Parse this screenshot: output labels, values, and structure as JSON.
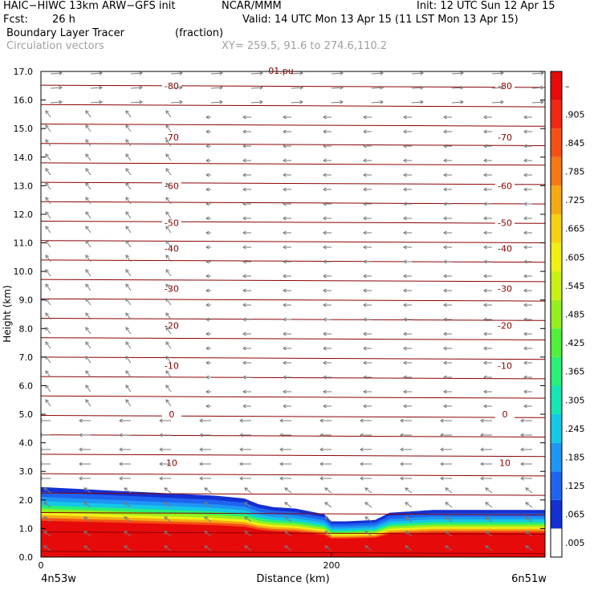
{
  "header": {
    "model": "HAIC−HIWC 13km ARW−GFS init",
    "center": "NCAR/MMM",
    "init": "Init: 12 UTC Sun 12 Apr 15",
    "fcst_label": "Fcst:",
    "fcst_value": "26 h",
    "valid": "Valid: 14 UTC Mon 13 Apr 15 (11 LST Mon 13 Apr 15)",
    "field": "Boundary Layer Tracer",
    "field_units": "(fraction)",
    "vectors": "Circulation vectors",
    "xy": "XY= 259.5, 91.6 to 274.6,110.2"
  },
  "chart_data": {
    "type": "heatmap",
    "title": "Boundary Layer Tracer",
    "units": "(fraction)",
    "xlabel": "Distance (km)",
    "ylabel": "Height (km)",
    "xlim": [
      0,
      347
    ],
    "ylim": [
      0,
      17
    ],
    "x_ticks": [
      {
        "value": 0,
        "label": "0"
      },
      {
        "value": 200,
        "label": "200"
      }
    ],
    "x_end_labels": {
      "left": "4n53w",
      "right": "6n51w"
    },
    "y_ticks": [
      "0.0",
      "1.0",
      "2.0",
      "3.0",
      "4.0",
      "5.0",
      "6.0",
      "7.0",
      "8.0",
      "9.0",
      "10.0",
      "11.0",
      "12.0",
      "13.0",
      "14.0",
      "15.0",
      "16.0",
      "17.0"
    ],
    "colorbar_labels": [
      ".005",
      ".065",
      ".125",
      ".185",
      ".245",
      ".305",
      ".365",
      ".425",
      ".485",
      ".545",
      ".605",
      ".665",
      ".725",
      ".785",
      ".845",
      ".905",
      "–"
    ],
    "colorbar_colors": [
      "#ffffff",
      "#1430d2",
      "#1e64f0",
      "#1e96f5",
      "#14c8e6",
      "#14e6b4",
      "#28f078",
      "#50f03c",
      "#96f01e",
      "#c8f014",
      "#f0f014",
      "#f5d214",
      "#f5aa14",
      "#f57814",
      "#f55014",
      "#f02814",
      "#e60a0a"
    ],
    "tracer_top_km": [
      [
        0,
        2.45
      ],
      [
        40,
        2.35
      ],
      [
        80,
        2.25
      ],
      [
        120,
        2.15
      ],
      [
        140,
        2.05
      ],
      [
        150,
        1.85
      ],
      [
        160,
        1.75
      ],
      [
        175,
        1.7
      ],
      [
        195,
        1.5
      ],
      [
        200,
        1.25
      ],
      [
        210,
        1.25
      ],
      [
        230,
        1.3
      ],
      [
        240,
        1.55
      ],
      [
        270,
        1.65
      ],
      [
        300,
        1.65
      ],
      [
        347,
        1.65
      ]
    ],
    "temperature_contour_labels": [
      {
        "value": "-80",
        "height_km": 16.5
      },
      {
        "value": "-70",
        "height_km": 14.7
      },
      {
        "value": "-60",
        "height_km": 13.0
      },
      {
        "value": "-50",
        "height_km": 11.7
      },
      {
        "value": "-40",
        "height_km": 10.8
      },
      {
        "value": "-30",
        "height_km": 9.4
      },
      {
        "value": "-20",
        "height_km": 8.1
      },
      {
        "value": "-10",
        "height_km": 6.7
      },
      {
        "value": "0",
        "height_km": 5.0
      },
      {
        "value": "10",
        "height_km": 3.3
      }
    ],
    "top_label": "01.pu"
  }
}
